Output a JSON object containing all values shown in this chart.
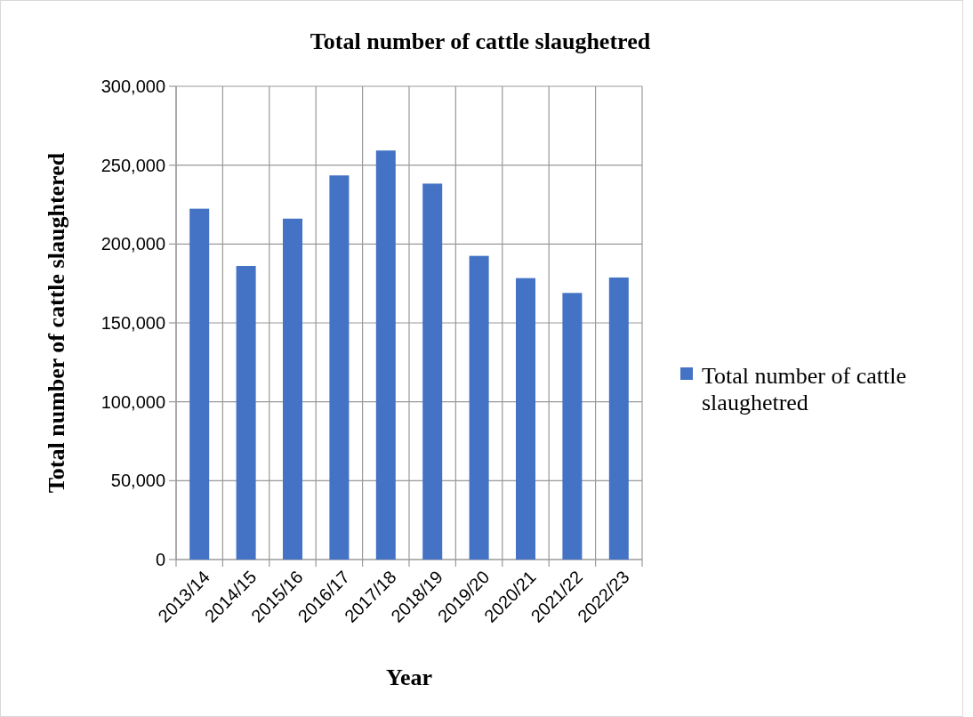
{
  "chart_data": {
    "type": "bar",
    "title": "Total number of cattle slaughetred",
    "xlabel": "Year",
    "ylabel": "Total number of cattle slaughtered",
    "categories": [
      "2013/14",
      "2014/15",
      "2015/16",
      "2016/17",
      "2017/18",
      "2018/19",
      "2019/20",
      "2020/21",
      "2021/22",
      "2022/23"
    ],
    "series": [
      {
        "name": "Total number of cattle slaughetred",
        "color": "#4472c4",
        "values": [
          222400,
          186100,
          216100,
          243500,
          259300,
          238300,
          192500,
          178400,
          169000,
          178800
        ]
      }
    ],
    "ylim": [
      0,
      300000
    ],
    "yticks": [
      {
        "value": 0,
        "label": "0"
      },
      {
        "value": 50000,
        "label": "50,000"
      },
      {
        "value": 100000,
        "label": "100,000"
      },
      {
        "value": 150000,
        "label": "150,000"
      },
      {
        "value": 200000,
        "label": "200,000"
      },
      {
        "value": 250000,
        "label": "250,000"
      },
      {
        "value": 300000,
        "label": "300,000"
      }
    ],
    "grid": true,
    "legend": "right"
  }
}
